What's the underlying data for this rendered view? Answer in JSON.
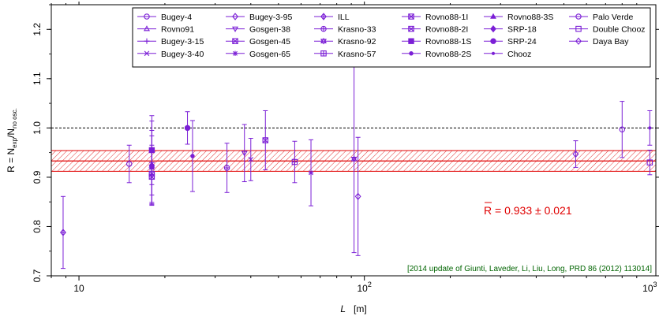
{
  "chart_data": {
    "type": "scatter",
    "title": "",
    "xlabel": {
      "var": "L",
      "unit": "[m]"
    },
    "ylabel": {
      "prefix": "R = N",
      "num_sub": "exp",
      "mid": "/N",
      "den_sub": "no osc."
    },
    "xscale": "log",
    "xlim": [
      8,
      1050
    ],
    "ylim": [
      0.7,
      1.25
    ],
    "x_ticks": [
      {
        "value": 10,
        "base": "10",
        "exp": ""
      },
      {
        "value": 100,
        "base": "10",
        "exp": "2"
      },
      {
        "value": 1000,
        "base": "10",
        "exp": "3"
      }
    ],
    "y_ticks": [
      "0.7",
      "0.8",
      "0.9",
      "1.0",
      "1.1",
      "1.2"
    ],
    "reference_line": 1.0,
    "average": {
      "value": 0.933,
      "error": 0.021,
      "label_bar": "R",
      "label_rest": " = 0.933 ± 0.021",
      "color": "#e00000"
    },
    "annotation": "[2014 update of Giunti, Laveder, Li, Liu, Long, PRD 86 (2012) 113014]",
    "legend_position": "top-center",
    "marker_color": "#7b1fd6",
    "series": [
      {
        "name": "Bugey-4",
        "marker": "circle-open",
        "points": [
          {
            "x": 15,
            "y": 0.927,
            "err": 0.038
          }
        ]
      },
      {
        "name": "Rovno91",
        "marker": "triangle-open",
        "points": [
          {
            "x": 18,
            "y": 0.924,
            "err": 0.028
          }
        ]
      },
      {
        "name": "Bugey-3-15",
        "marker": "plus",
        "points": [
          {
            "x": 18,
            "y": 0.93,
            "err": 0.084
          }
        ]
      },
      {
        "name": "Bugey-3-40",
        "marker": "cross",
        "points": [
          {
            "x": 40,
            "y": 0.936,
            "err": 0.043
          }
        ]
      },
      {
        "name": "Bugey-3-95",
        "marker": "diamond-open",
        "points": [
          {
            "x": 95,
            "y": 0.861,
            "err": 0.12
          }
        ]
      },
      {
        "name": "Gosgen-38",
        "marker": "triangle-down-open",
        "points": [
          {
            "x": 38,
            "y": 0.949,
            "err": 0.058
          }
        ]
      },
      {
        "name": "Gosgen-45",
        "marker": "square-cross",
        "points": [
          {
            "x": 45,
            "y": 0.975,
            "err": 0.06
          }
        ]
      },
      {
        "name": "Gosgen-65",
        "marker": "asterisk",
        "points": [
          {
            "x": 65,
            "y": 0.909,
            "err": 0.067
          }
        ]
      },
      {
        "name": "ILL",
        "marker": "diamond-plus",
        "points": [
          {
            "x": 8.8,
            "y": 0.788,
            "err": 0.073
          }
        ]
      },
      {
        "name": "Krasno-33",
        "marker": "circle-plus",
        "points": [
          {
            "x": 33,
            "y": 0.919,
            "err": 0.05
          }
        ]
      },
      {
        "name": "Krasno-92",
        "marker": "star-of-david",
        "points": [
          {
            "x": 92,
            "y": 0.937,
            "err": 0.19
          }
        ]
      },
      {
        "name": "Krasno-57",
        "marker": "square-plus",
        "points": [
          {
            "x": 57,
            "y": 0.931,
            "err": 0.042
          }
        ]
      },
      {
        "name": "Rovno88-1I",
        "marker": "square-x",
        "points": [
          {
            "x": 18,
            "y": 0.907,
            "err": 0.058
          }
        ]
      },
      {
        "name": "Rovno88-2I",
        "marker": "square-x-open",
        "points": [
          {
            "x": 18,
            "y": 0.901,
            "err": 0.058
          }
        ]
      },
      {
        "name": "Rovno88-1S",
        "marker": "square-filled",
        "points": [
          {
            "x": 18,
            "y": 0.955,
            "err": 0.07
          }
        ]
      },
      {
        "name": "Rovno88-2S",
        "marker": "circle-small",
        "points": [
          {
            "x": 25,
            "y": 0.943,
            "err": 0.072
          }
        ]
      },
      {
        "name": "Rovno88-3S",
        "marker": "triangle-filled",
        "points": [
          {
            "x": 18,
            "y": 0.92,
            "err": 0.075
          }
        ]
      },
      {
        "name": "SRP-18",
        "marker": "diamond-filled",
        "points": [
          {
            "x": 18,
            "y": 0.924,
            "err": 0.06
          }
        ]
      },
      {
        "name": "SRP-24",
        "marker": "circle-filled",
        "points": [
          {
            "x": 24,
            "y": 1.0,
            "err": 0.033
          }
        ]
      },
      {
        "name": "Chooz",
        "marker": "dot",
        "points": [
          {
            "x": 1000,
            "y": 1.0,
            "err": 0.035
          }
        ]
      },
      {
        "name": "Palo Verde",
        "marker": "circle-open",
        "points": [
          {
            "x": 800,
            "y": 0.997,
            "err": 0.057
          }
        ]
      },
      {
        "name": "Double Chooz",
        "marker": "square-open",
        "points": [
          {
            "x": 1000,
            "y": 0.93,
            "err": 0.025
          }
        ]
      },
      {
        "name": "Daya Bay",
        "marker": "diamond-open",
        "points": [
          {
            "x": 550,
            "y": 0.947,
            "err": 0.027
          }
        ]
      }
    ]
  }
}
